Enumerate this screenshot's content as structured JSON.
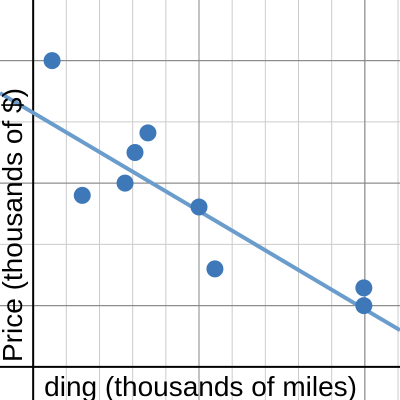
{
  "chart_data": {
    "type": "scatter",
    "x_label": "ding (thousands of miles)",
    "y_label": "Price (thousands of $)",
    "xlim": [
      -1,
      11.06
    ],
    "ylim": [
      -0.54,
      5.99
    ],
    "xticks": [
      0,
      1,
      2,
      3,
      4,
      5,
      6,
      7,
      8,
      9,
      10,
      11
    ],
    "yticks": [
      0,
      1,
      2,
      3,
      4,
      5
    ],
    "major_xticks": [
      0,
      5,
      10
    ],
    "major_yticks": [
      1,
      3,
      5
    ],
    "grid": true,
    "series": [
      {
        "color": "#3f78b8",
        "x": [
          0.57,
          1.48,
          2.77,
          3.07,
          3.46,
          5.0,
          5.48,
          9.97,
          9.97
        ],
        "values": [
          5.0,
          2.8,
          3.0,
          3.5,
          3.82,
          2.61,
          1.6,
          1.29,
          1.0
        ]
      }
    ],
    "trendline": {
      "slope": -0.321,
      "intercept": 4.15,
      "color": "#6a9ccc"
    }
  }
}
